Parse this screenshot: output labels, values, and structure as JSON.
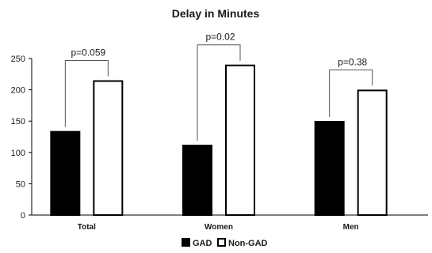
{
  "chart_data": {
    "type": "bar",
    "title": "Delay in Minutes",
    "categories": [
      "Total",
      "Women",
      "Men"
    ],
    "series": [
      {
        "name": "GAD",
        "values": [
          133,
          111,
          149
        ],
        "color": "#000000"
      },
      {
        "name": "Non-GAD",
        "values": [
          214,
          239,
          199
        ],
        "color": "#ffffff"
      }
    ],
    "ylim": [
      0,
      250
    ],
    "yticks": [
      "0",
      "50",
      "100",
      "150",
      "200",
      "250"
    ],
    "annotations": [
      "p=0.059",
      "p=0.02",
      "p=0.38"
    ],
    "grid": false,
    "legend": "bottom"
  }
}
